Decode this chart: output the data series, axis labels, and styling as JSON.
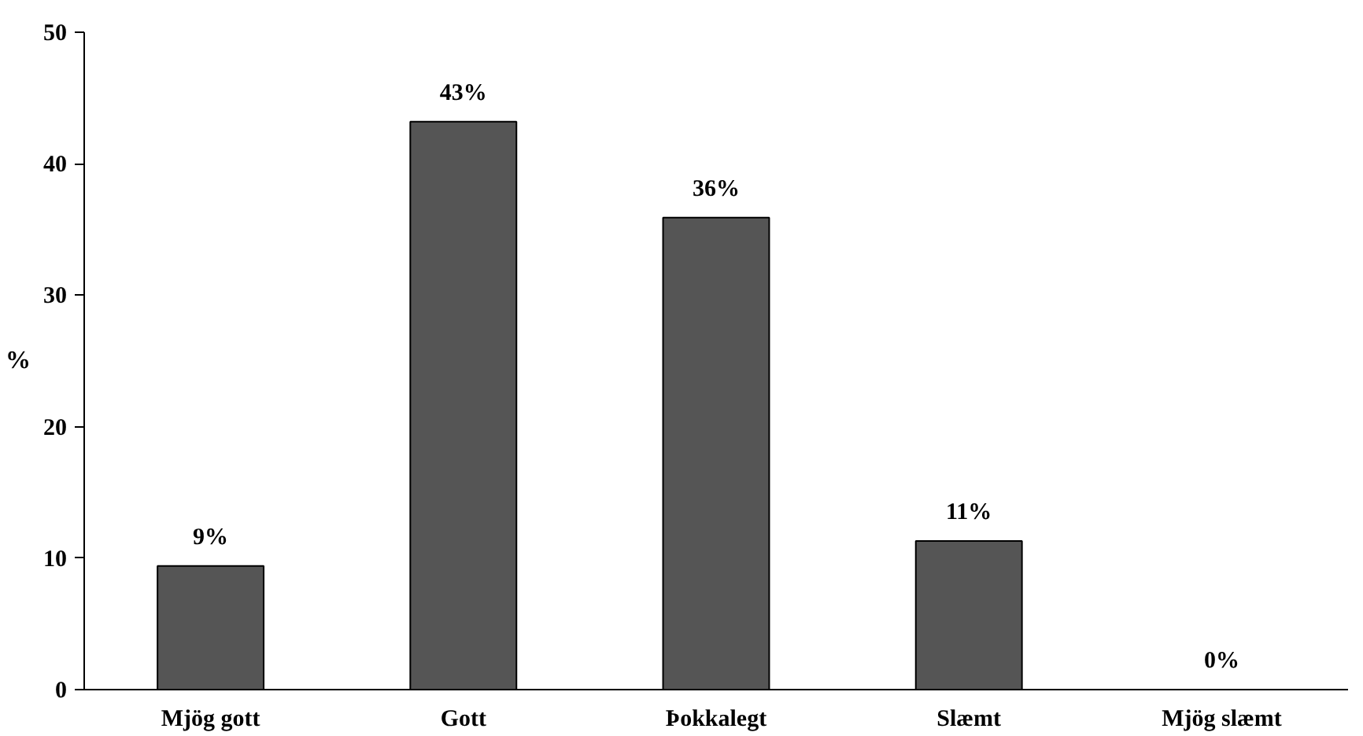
{
  "chart_data": {
    "type": "bar",
    "ylabel": "%",
    "categories": [
      "Mjög gott",
      "Gott",
      "Þokkalegt",
      "Slæmt",
      "Mjög slæmt"
    ],
    "values": [
      9.4,
      43.2,
      35.9,
      11.3,
      0
    ],
    "value_labels": [
      "9%",
      "43%",
      "36%",
      "11%",
      "0%"
    ],
    "color": "#555555",
    "ylim": [
      0,
      50
    ],
    "yticks": [
      0,
      10,
      20,
      30,
      40,
      50
    ],
    "grid": false
  }
}
